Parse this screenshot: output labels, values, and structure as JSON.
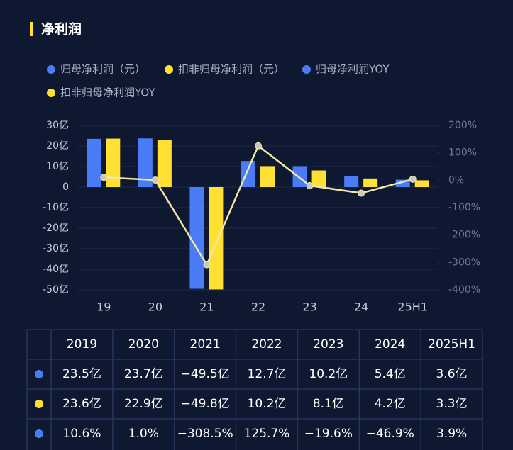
{
  "chart_data": {
    "type": "bar-line",
    "title": "净利润",
    "legend": [
      {
        "name": "归母净利润（元）",
        "color": "#4a7cf7"
      },
      {
        "name": "扣非归母净利润（元）",
        "color": "#ffe033"
      },
      {
        "name": "归母净利润YOY",
        "color": "#4a7cf7"
      },
      {
        "name": "扣非归母净利润YOY",
        "color": "#ffe033"
      }
    ],
    "categories": [
      "19",
      "20",
      "21",
      "22",
      "23",
      "24",
      "25H1"
    ],
    "bars": [
      {
        "color": "#4a7cf7",
        "values": [
          23.5,
          23.7,
          -49.5,
          12.7,
          10.2,
          5.4,
          3.6
        ],
        "value_labels": [
          "23.5亿",
          "23.7亿",
          "−49.5亿",
          "12.7亿",
          "10.2亿",
          "5.4亿",
          "3.6亿"
        ]
      },
      {
        "color": "#ffe033",
        "values": [
          23.6,
          22.9,
          -49.8,
          10.2,
          8.1,
          4.2,
          3.3
        ],
        "value_labels": [
          "23.6亿",
          "22.9亿",
          "−49.8亿",
          "10.2亿",
          "8.1亿",
          "4.2亿",
          "3.3亿"
        ]
      }
    ],
    "lines": [
      {
        "axis": "y2",
        "color": "#f3e7a6",
        "marker_color": "#c8c8c8",
        "legend_color": "#4a7cf7",
        "values": [
          10.6,
          1.0,
          -308.5,
          125.7,
          -19.6,
          -46.9,
          3.9
        ],
        "value_labels": [
          "10.6%",
          "1.0%",
          "−308.5%",
          "125.7%",
          "−19.6%",
          "−46.9%",
          "3.9%"
        ]
      }
    ],
    "ylim": [
      -50,
      30
    ],
    "yticks": [
      {
        "value": 30,
        "label": "30亿"
      },
      {
        "value": 20,
        "label": "20亿"
      },
      {
        "value": 10,
        "label": "10亿"
      },
      0,
      {
        "value": -10,
        "label": "-10亿"
      },
      {
        "value": -20,
        "label": "-20亿"
      },
      {
        "value": -30,
        "label": "-30亿"
      },
      {
        "value": -40,
        "label": "-40亿"
      },
      {
        "value": -50,
        "label": "-50亿"
      }
    ],
    "y2lim": [
      -400,
      200
    ],
    "y2ticks": [
      {
        "value": 200,
        "label": "200%"
      },
      {
        "value": 100,
        "label": "100%"
      },
      {
        "value": 0,
        "label": "0%"
      },
      {
        "value": -100,
        "label": "-100%"
      },
      {
        "value": -200,
        "label": "-200%"
      },
      {
        "value": -300,
        "label": "-300%"
      },
      {
        "value": -400,
        "label": "-400%"
      }
    ],
    "grid": true,
    "table_header": [
      "2019",
      "2020",
      "2021",
      "2022",
      "2023",
      "2024",
      "2025H1"
    ]
  }
}
